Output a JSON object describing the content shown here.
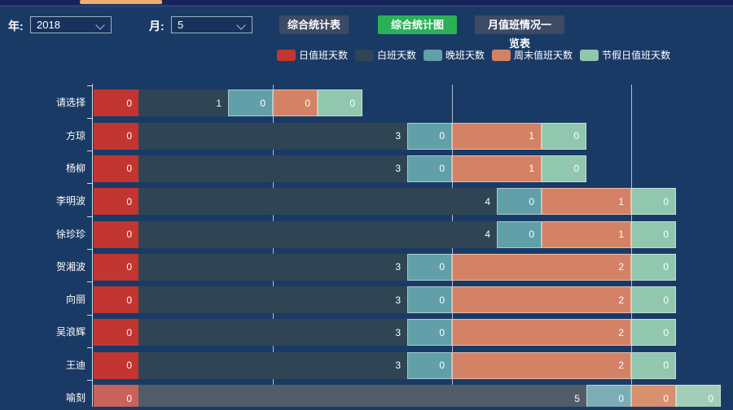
{
  "colors": {
    "background": "#1a3a66",
    "scrollbar_thumb": "#efae6d",
    "button_default": "#3d4a64",
    "button_active": "#2ab157",
    "axis": "#e6ebf3",
    "gridline": "#d6deea"
  },
  "form": {
    "year_label": "年:",
    "year_value": "2018",
    "month_label": "月:",
    "month_value": "5",
    "buttons": [
      {
        "label": "综合统计表",
        "active": false
      },
      {
        "label": "综合统计图",
        "active": true
      },
      {
        "label": "月值班情况一览表",
        "active": false
      }
    ]
  },
  "chart_data": {
    "type": "bar",
    "orientation": "horizontal",
    "stacked": true,
    "legend_position": "top",
    "grid": true,
    "categories": [
      "请选择",
      "方琼",
      "杨柳",
      "李明波",
      "徐珍珍",
      "贺湘波",
      "向丽",
      "吴浪辉",
      "王迪",
      "喻刻"
    ],
    "series": [
      {
        "name": "日值班天数",
        "color": "#c23531",
        "values": [
          0,
          0,
          0,
          0,
          0,
          0,
          0,
          0,
          0,
          0
        ]
      },
      {
        "name": "白班天数",
        "color": "#2f4554",
        "values": [
          1,
          3,
          3,
          4,
          4,
          3,
          3,
          3,
          3,
          5
        ]
      },
      {
        "name": "晚班天数",
        "color": "#61a0a8",
        "values": [
          0,
          0,
          0,
          0,
          0,
          0,
          0,
          0,
          0,
          0
        ]
      },
      {
        "name": "周末值班天数",
        "color": "#d48265",
        "values": [
          0,
          1,
          1,
          1,
          1,
          2,
          2,
          2,
          2,
          0
        ]
      },
      {
        "name": "节假日值班天数",
        "color": "#91c7ae",
        "values": [
          0,
          0,
          0,
          0,
          0,
          0,
          0,
          0,
          0,
          0
        ]
      }
    ],
    "highlighted_category": "喻刻",
    "muted_colors": [
      "#c9625a",
      "#505c68",
      "#7dadb4",
      "#d8906f",
      "#a3cdb6"
    ],
    "axis_note": "zero values rendered as half-unit stub segments; x gridlines at 2, 4, 6 days",
    "gridline_values": [
      2,
      4,
      6
    ],
    "xlim": [
      0,
      7.15
    ]
  }
}
